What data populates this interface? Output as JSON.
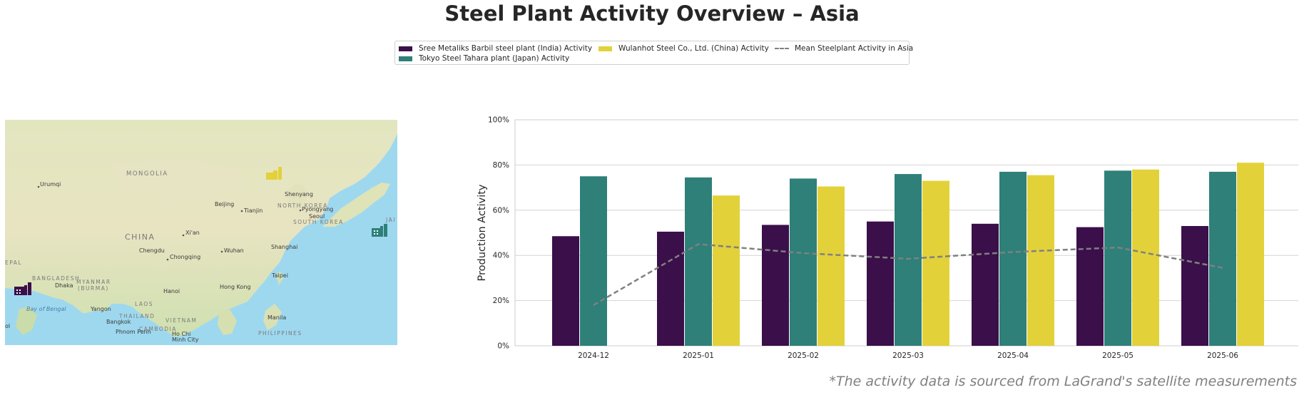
{
  "title": "Steel Plant Activity Overview – Asia",
  "footer": "*The activity data is sourced from LaGrand's satellite measurements",
  "colors": {
    "sree": "#3b0f4a",
    "tokyo": "#2e8079",
    "wulanhot": "#e3d13a",
    "mean": "#808080"
  },
  "map": {
    "labels": {
      "mongolia": "MONGOLIA",
      "china": "CHINA",
      "north_korea": "NORTH KOREA",
      "south_korea": "SOUTH KOREA",
      "bangladesh": "BANGLADESH",
      "myanmar": "MYANMAR",
      "burma": "(BURMA)",
      "laos": "LAOS",
      "thailand": "THAILAND",
      "vietnam": "VIETNAM",
      "cambodia": "CAMBODIA",
      "philippines": "PHILIPPINES",
      "nepal": "EPAL",
      "japan": "JAI",
      "bay_of_bengal": "Bay of Bengal",
      "urumqi": "Urumqi",
      "beijing": "Beijing",
      "tianjin": "Tianjin",
      "shenyang": "Shenyang",
      "pyongyang": "Pyongyang",
      "seoul": "Seoul",
      "xian": "Xi'an",
      "chengdu": "Chengdu",
      "chongqing": "Chongqing",
      "wuhan": "Wuhan",
      "shanghai": "Shanghai",
      "taipei": "Taipei",
      "hong_kong": "Hong Kong",
      "hanoi": "Hanoi",
      "dhaka": "Dhaka",
      "yangon": "Yangon",
      "bangkok": "Bangkok",
      "phnom_penh": "Phnom Penh",
      "ho_chi_minh": "Ho Chi",
      "minh_city": "Minh City",
      "manila": "Manila",
      "kolkata_partial": "ol"
    }
  },
  "chart_data": {
    "type": "bar",
    "categories": [
      "2024-12",
      "2025-01",
      "2025-02",
      "2025-03",
      "2025-04",
      "2025-05",
      "2025-06"
    ],
    "series": [
      {
        "name": "Sree Metaliks Barbil steel plant (India) Activity",
        "values": [
          48.5,
          50.5,
          53.5,
          55.0,
          54.0,
          52.5,
          53.0
        ]
      },
      {
        "name": "Tokyo Steel Tahara plant (Japan) Activity",
        "values": [
          75.0,
          74.5,
          74.0,
          76.0,
          77.0,
          77.5,
          77.0
        ]
      },
      {
        "name": "Wulanhot Steel Co., Ltd. (China) Activity",
        "values": [
          null,
          66.5,
          70.5,
          73.0,
          75.5,
          78.0,
          81.0
        ]
      },
      {
        "name": "Mean Steelplant Activity in Asia",
        "type": "line",
        "values": [
          18.0,
          45.0,
          41.0,
          38.5,
          41.5,
          43.5,
          34.5
        ]
      }
    ],
    "ylabel": "Production Activity",
    "xlabel": "",
    "ylim": [
      0,
      100
    ],
    "yticks": [
      "0%",
      "20%",
      "40%",
      "60%",
      "80%",
      "100%"
    ],
    "grid": "horizontal",
    "legend": "top-center"
  }
}
